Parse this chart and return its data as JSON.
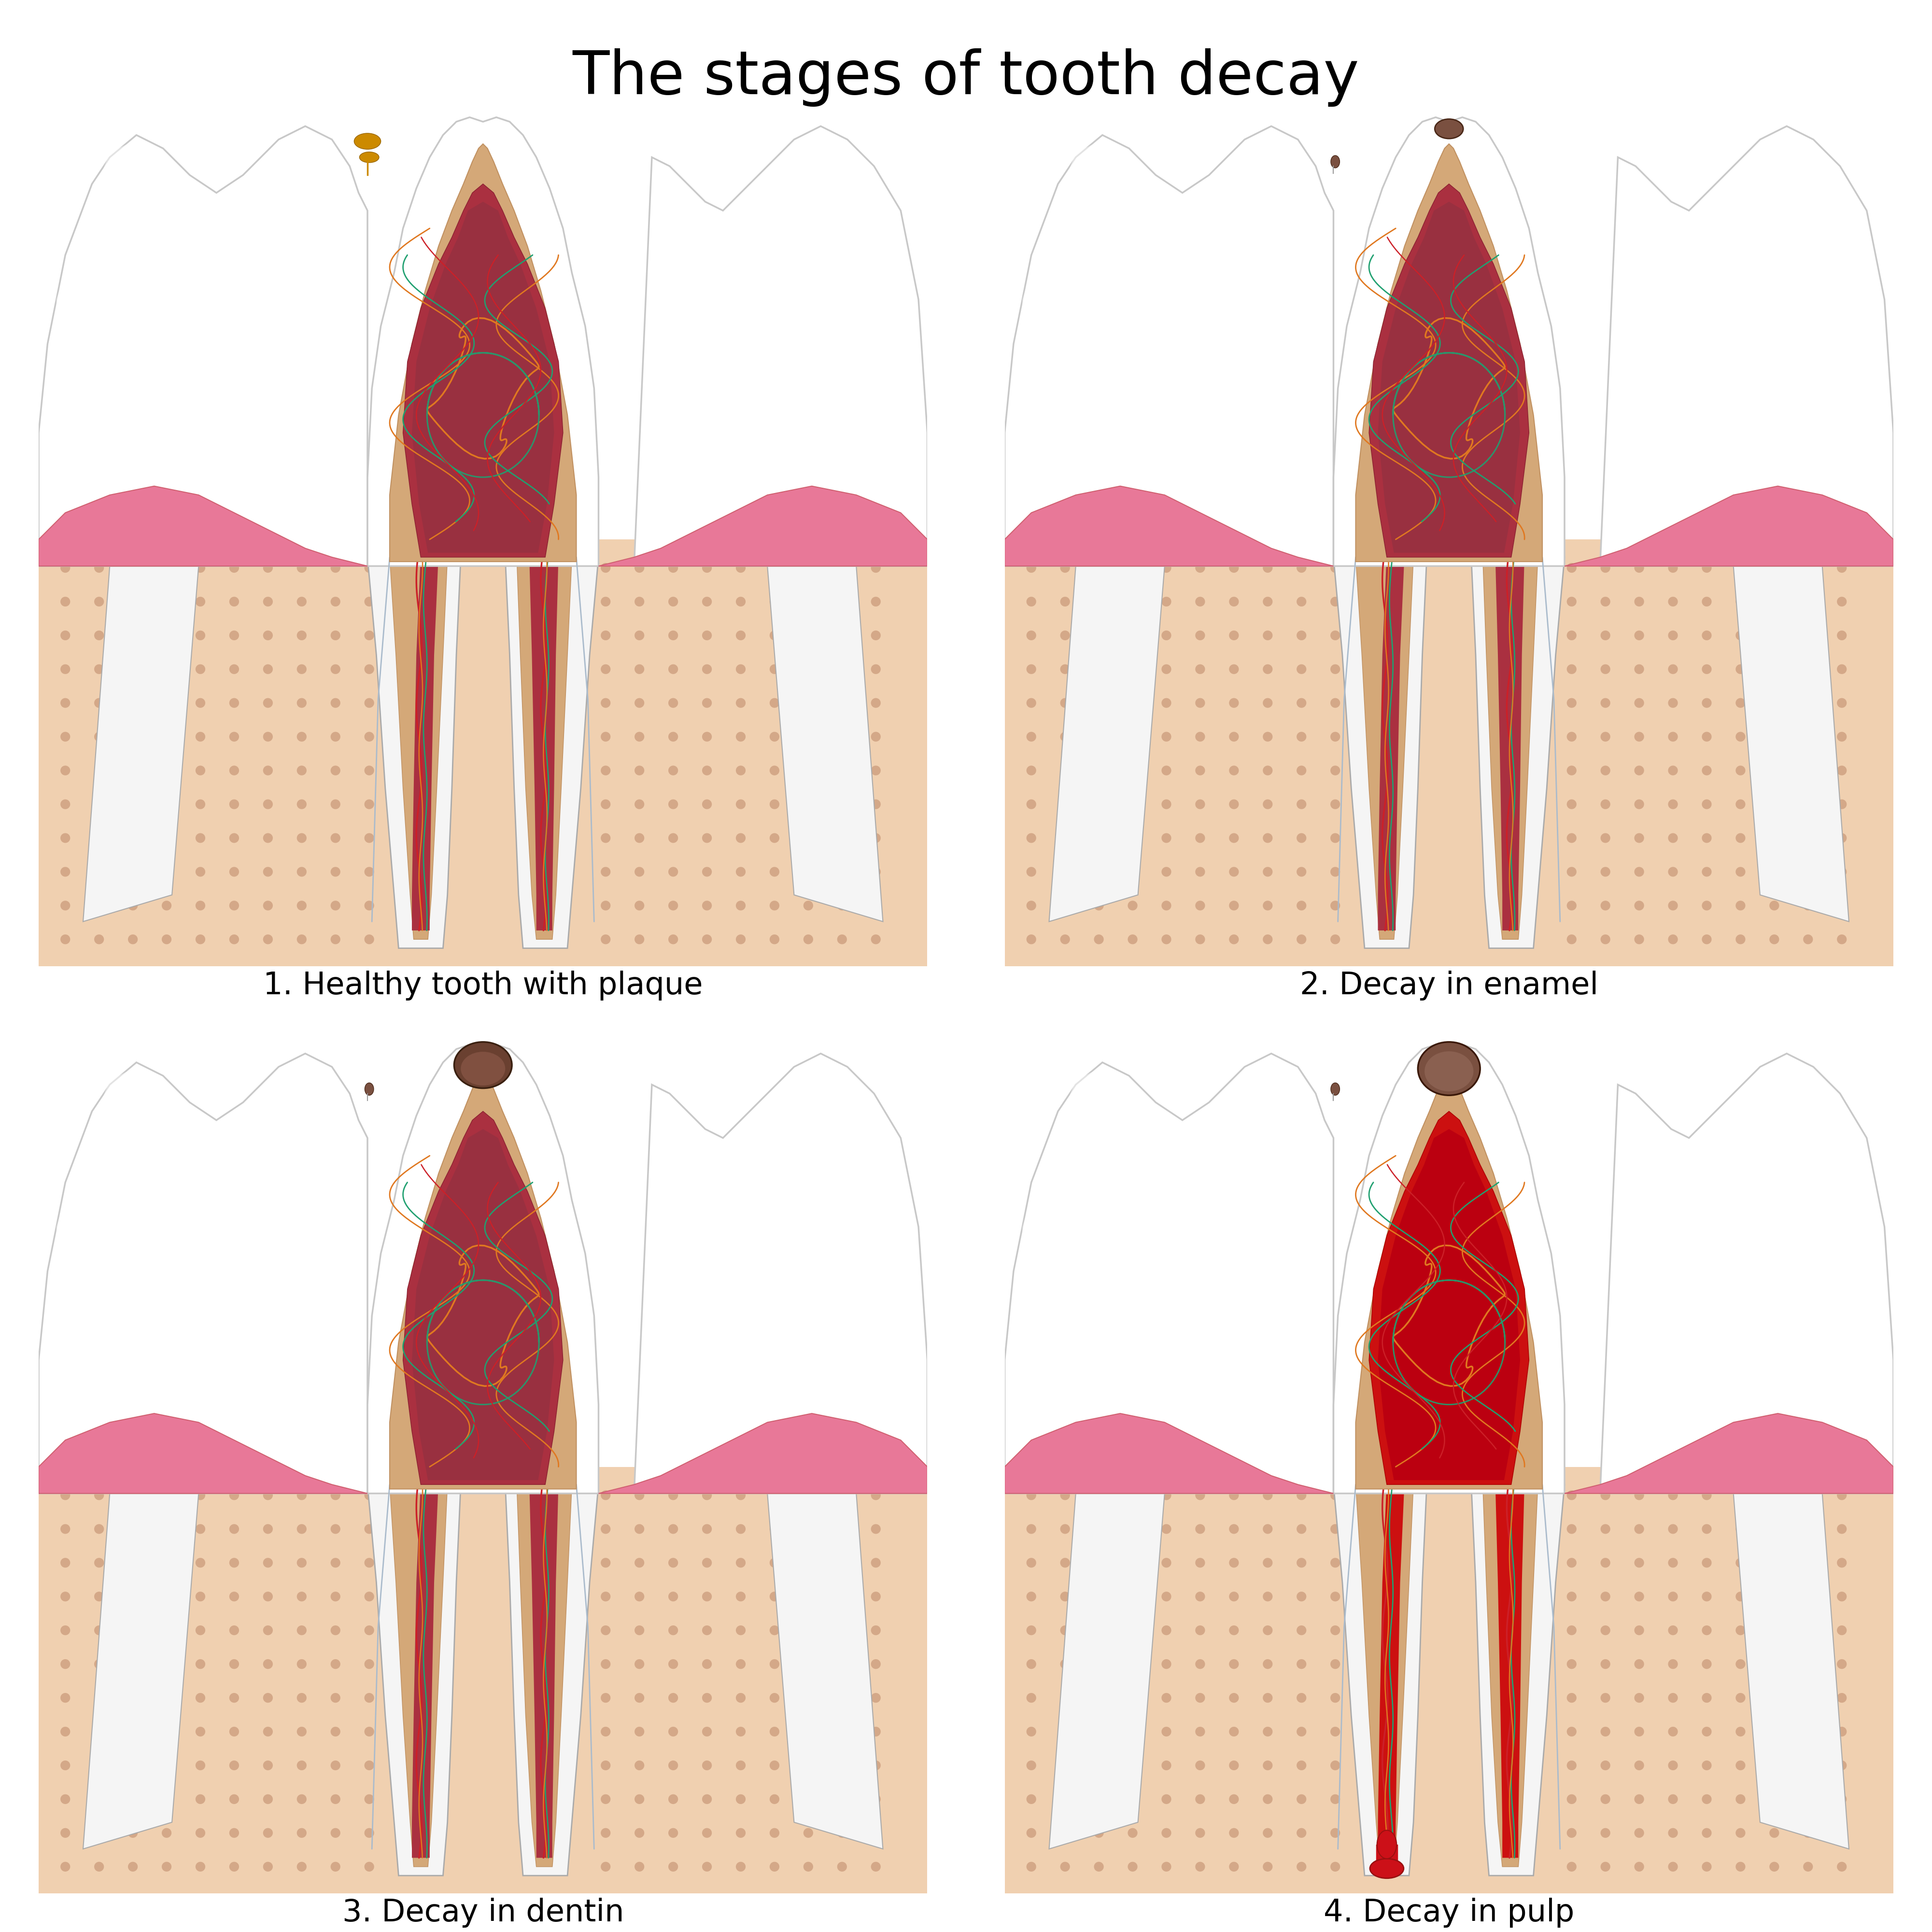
{
  "title": "The stages of tooth decay",
  "title_fontsize": 90,
  "background_color": "#ffffff",
  "labels": [
    "1. Healthy tooth with plaque",
    "2. Decay in enamel",
    "3. Decay in dentin",
    "4. Decay in pulp"
  ],
  "label_fontsize": 46,
  "colors": {
    "white": "#ffffff",
    "enamel_white": "#f5f5f5",
    "enamel_bright": "#ffffff",
    "enamel_gray": "#c8c8c8",
    "enamel_outline": "#aaaaaa",
    "dentin_outer": "#d4a878",
    "dentin_inner": "#c09060",
    "dentin_light": "#e8c8a0",
    "pulp_outer": "#aa3040",
    "pulp_mid": "#8a2030",
    "pulp_inner": "#c85060",
    "pulp_highlight": "#b84050",
    "gum_pink": "#e87898",
    "gum_base": "#d06070",
    "bone_fill": "#f0d0b0",
    "bone_light": "#f5dfc0",
    "bone_dot": "#d4a888",
    "bone_outline": "#c8a070",
    "nerve_orange": "#e07820",
    "nerve_teal": "#20a070",
    "nerve_red": "#cc2028",
    "root_gray": "#aabbcc",
    "plaque_gold": "#cc8a00",
    "cavity_stage1": "#8a6050",
    "cavity_stage2": "#6a4030",
    "cavity_stage3": "#5a3020",
    "abscess_red": "#cc1018",
    "abscess_dark": "#991010",
    "inflamed": "#cc1010",
    "neighbor_white": "#f8f8f8",
    "neighbor_gray": "#e0e0e0",
    "neighbor_outline": "#b5b5b5"
  }
}
